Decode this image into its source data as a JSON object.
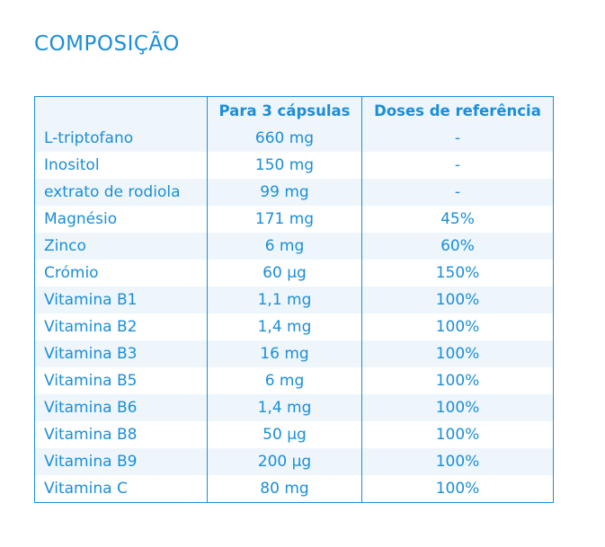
{
  "title": "COMPOSIÇÃO",
  "headers": [
    "",
    "Para 3 cápsulas",
    "Doses de referência"
  ],
  "rows": [
    [
      "L-triptofano",
      "660 mg",
      "-"
    ],
    [
      "Inositol",
      "150 mg",
      "-"
    ],
    [
      "extrato de rodiola",
      "99 mg",
      "-"
    ],
    [
      "Magnésio",
      "171 mg",
      "45%"
    ],
    [
      "Zinco",
      "6 mg",
      "60%"
    ],
    [
      "Crómio",
      "60 µg",
      "150%"
    ],
    [
      "Vitamina B1",
      "1,1 mg",
      "100%"
    ],
    [
      "Vitamina B2",
      "1,4 mg",
      "100%"
    ],
    [
      "Vitamina B3",
      "16 mg",
      "100%"
    ],
    [
      "Vitamina B5",
      "6 mg",
      "100%"
    ],
    [
      "Vitamina B6",
      "1,4 mg",
      "100%"
    ],
    [
      "Vitamina B8",
      "50 µg",
      "100%"
    ],
    [
      "Vitamina B9",
      "200 µg",
      "100%"
    ],
    [
      "Vitamina C",
      "80 mg",
      "100%"
    ]
  ]
}
